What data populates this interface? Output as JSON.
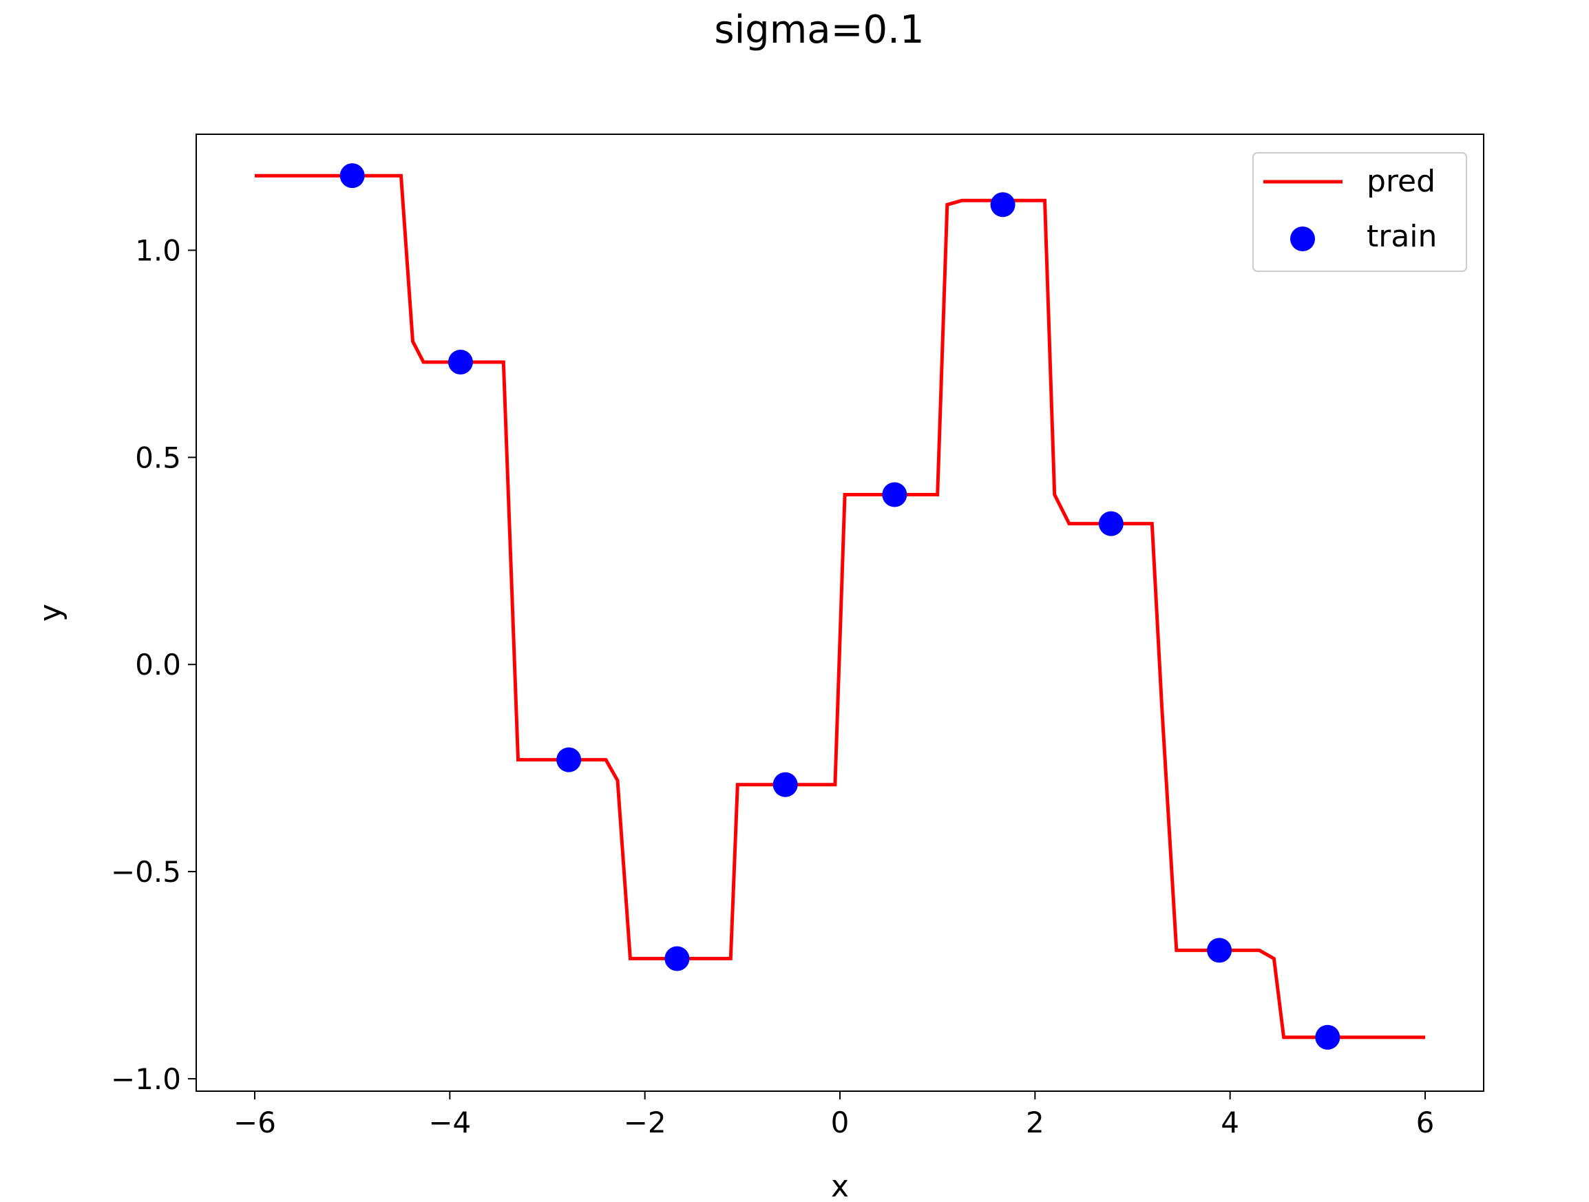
{
  "chart_data": {
    "type": "line",
    "title": "sigma=0.1",
    "xlabel": "x",
    "ylabel": "y",
    "xlim": [
      -6.6,
      6.6
    ],
    "ylim": [
      -1.03,
      1.28
    ],
    "grid": false,
    "legend_placement": "top-right",
    "x_ticks": [
      -6,
      -4,
      -2,
      0,
      2,
      4,
      6
    ],
    "x_tick_labels": [
      "−6",
      "−4",
      "−2",
      "0",
      "2",
      "4",
      "6"
    ],
    "y_ticks": [
      -1.0,
      -0.5,
      0.0,
      0.5,
      1.0
    ],
    "y_tick_labels": [
      "−1.0",
      "−0.5",
      "0.0",
      "0.5",
      "1.0"
    ],
    "series": [
      {
        "name": "pred",
        "kind": "line",
        "color": "#ff0000",
        "x": [
          -6.0,
          -4.5,
          -4.38,
          -4.27,
          -3.45,
          -3.3,
          -3.2,
          -2.4,
          -2.28,
          -2.15,
          -1.25,
          -1.12,
          -1.05,
          -0.05,
          0.05,
          1.0,
          1.1,
          1.25,
          2.1,
          2.2,
          2.35,
          3.2,
          3.3,
          3.45,
          4.3,
          4.45,
          4.55,
          6.0
        ],
        "y": [
          1.18,
          1.18,
          0.78,
          0.73,
          0.73,
          -0.23,
          -0.23,
          -0.23,
          -0.28,
          -0.71,
          -0.71,
          -0.71,
          -0.29,
          -0.29,
          0.41,
          0.41,
          1.11,
          1.12,
          1.12,
          0.41,
          0.34,
          0.34,
          -0.1,
          -0.69,
          -0.69,
          -0.71,
          -0.9,
          -0.9
        ]
      },
      {
        "name": "train",
        "kind": "scatter",
        "color": "#0000ff",
        "x": [
          -5.0,
          -3.89,
          -2.78,
          -1.67,
          -0.56,
          0.56,
          1.67,
          2.78,
          3.89,
          5.0
        ],
        "y": [
          1.18,
          0.73,
          -0.23,
          -0.71,
          -0.29,
          0.41,
          1.11,
          0.34,
          -0.69,
          -0.9
        ]
      }
    ]
  }
}
